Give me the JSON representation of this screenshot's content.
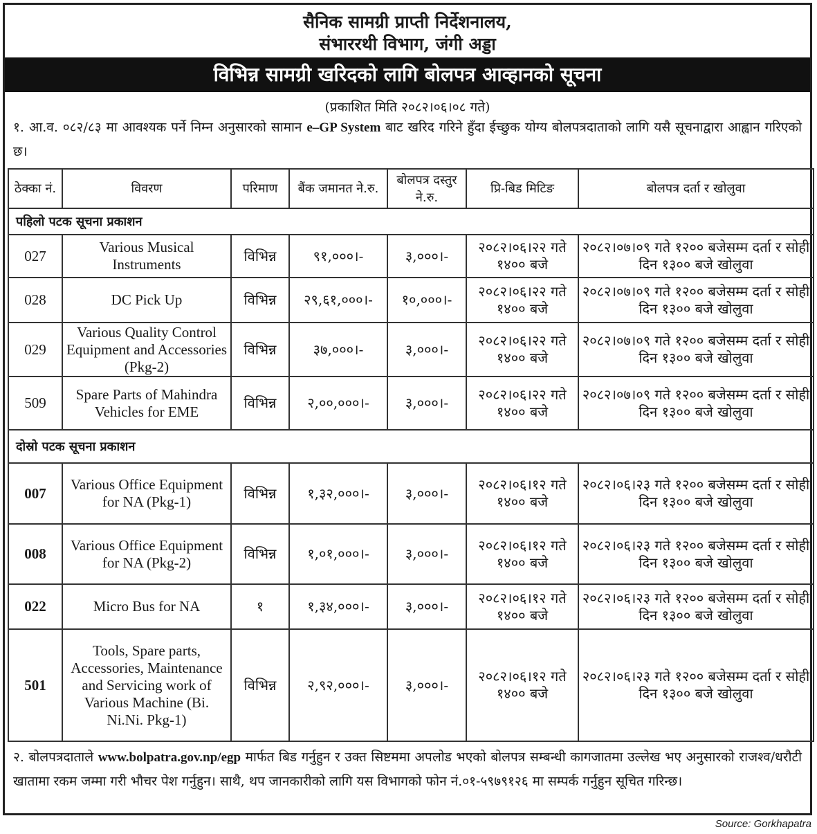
{
  "header": {
    "line1": "सैनिक सामग्री प्राप्ती निर्देशनालय,",
    "line2": "संभाररथी विभाग, जंगी अड्डा",
    "title": "विभिन्न सामग्री खरिदको लागि बोलपत्र आव्हानको सूचना",
    "published": "(प्रकाशित मिति २०८२।०६।०८  गते)"
  },
  "para1": {
    "pre": "१.  आ.व. ०८२/८३ मा आवश्यक पर्ने निम्न अनुसारको सामान ",
    "bold": "e–GP System",
    "post": " बाट खरिद गरिने हुँदा ईच्छुक योग्य बोलपत्रदाताको लागि यसै सूचनाद्वारा आह्वान गरिएको छ।"
  },
  "table": {
    "headers": [
      "ठेक्का नं.",
      "विवरण",
      "परिमाण",
      "बैंक जमानत ने.रु.",
      "बोलपत्र दस्तुर ने.रु.",
      "प्रि-बिड मिटिङ",
      "बोलपत्र दर्ता र खोलुवा"
    ],
    "sections": [
      {
        "title": "पहिलो पटक सूचना प्रकाशन",
        "rows": [
          {
            "no": "027",
            "desc": "Various Musical Instruments",
            "qty": "विभिन्न",
            "bank": "९१,०००।-",
            "fee": "३,०००।-",
            "prebid": "२०८२।०६।२२ गते १४०० बजे",
            "submit": "२०८२।०७।०९ गते १२०० बजेसम्म दर्ता र सोही दिन १३०० बजे खोलुवा"
          },
          {
            "no": "028",
            "desc": "DC Pick Up",
            "qty": "विभिन्न",
            "bank": "२९,६१,०००।-",
            "fee": "१०,०००।-",
            "prebid": "२०८२।०६।२२ गते १४०० बजे",
            "submit": "२०८२।०७।०९ गते १२०० बजेसम्म दर्ता र सोही दिन १३०० बजे खोलुवा"
          },
          {
            "no": "029",
            "desc": "Various Quality Control Equipment and Accessories (Pkg-2)",
            "qty": "विभिन्न",
            "bank": "३७,०००।-",
            "fee": "३,०००।-",
            "prebid": "२०८२।०६।२२ गते १४०० बजे",
            "submit": "२०८२।०७।०९ गते १२०० बजेसम्म दर्ता र सोही दिन १३०० बजे खोलुवा"
          },
          {
            "no": "509",
            "desc": "Spare Parts of Mahindra Vehicles for EME",
            "qty": "विभिन्न",
            "bank": "२,००,०००।-",
            "fee": "३,०००।-",
            "prebid": "२०८२।०६।२२ गते १४०० बजे",
            "submit": "२०८२।०७।०९ गते १२०० बजेसम्म दर्ता र सोही दिन १३०० बजे खोलुवा"
          }
        ]
      },
      {
        "title": "दोस्रो पटक सूचना प्रकाशन",
        "rows": [
          {
            "no": "007",
            "desc": "Various Office Equipment for NA (Pkg-1)",
            "qty": "विभिन्न",
            "bank": "१,३२,०००।-",
            "fee": "३,०००।-",
            "prebid": "२०८२।०६।१२ गते १४०० बजे",
            "submit": "२०८२।०६।२३ गते १२०० बजेसम्म दर्ता र सोही दिन १३०० बजे खोलुवा"
          },
          {
            "no": "008",
            "desc": "Various Office Equipment for NA (Pkg-2)",
            "qty": "विभिन्न",
            "bank": "१,०१,०००।-",
            "fee": "३,०००।-",
            "prebid": "२०८२।०६।१२ गते १४०० बजे",
            "submit": "२०८२।०६।२३ गते १२०० बजेसम्म दर्ता र सोही दिन १३०० बजे खोलुवा"
          },
          {
            "no": "022",
            "desc": "Micro Bus for NA",
            "qty": "१",
            "bank": "१,३४,०००।-",
            "fee": "३,०००।-",
            "prebid": "२०८२।०६।१२ गते १४०० बजे",
            "submit": "२०८२।०६।२३ गते १२०० बजेसम्म दर्ता र सोही दिन १३०० बजे खोलुवा"
          },
          {
            "no": "501",
            "desc": "Tools, Spare parts, Accessories, Maintenance and Servicing work of Various Machine (Bi. Ni.Ni. Pkg-1)",
            "qty": "विभिन्न",
            "bank": "२,९२,०००।-",
            "fee": "३,०००।-",
            "prebid": "२०८२।०६।१२ गते १४०० बजे",
            "submit": "२०८२।०६।२३ गते १२०० बजेसम्म दर्ता र सोही दिन १३०० बजे खोलुवा"
          }
        ]
      }
    ]
  },
  "para2": {
    "pre": "२.  बोलपत्रदाताले ",
    "bold": "www.bolpatra.gov.np/egp",
    "post": " मार्फत बिड गर्नुहुन र उक्त सिष्टममा अपलोड भएको बोलपत्र सम्बन्धी कागजातमा उल्लेख भए अनुसारको राजश्व/धरौटी खातामा रकम जम्मा गरी भौचर पेश गर्नुहुन। साथै, थप जानकारीको लागि यस विभागको फोन नं.०१-५९७९१२६ मा सम्पर्क गर्नुहुन सूचित गरिन्छ।"
  },
  "source": "Source: Gorkhapatra"
}
